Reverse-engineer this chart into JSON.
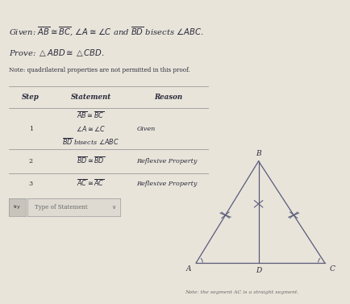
{
  "bg_color": "#e8e4da",
  "header_color": "#b8c4d0",
  "title_bg": "#dde4ea",
  "given_text": "Given: $\\overline{AB} \\cong \\overline{BC}$, $\\angle A \\cong \\angle C$ and $\\overline{BD}$ bisects $\\angle ABC$.",
  "prove_text": "Prove: $\\triangle ABD \\cong \\triangle CBD$.",
  "note_top": "Note: quadrilateral properties are not permitted in this proof.",
  "table_headers": [
    "Step",
    "Statement",
    "Reason"
  ],
  "row1_stmt": [
    "$\\overline{AB} \\cong \\overline{BC}$",
    "$\\angle A \\cong \\angle C$",
    "$\\overline{BD}$ bisects $\\angle ABC$"
  ],
  "row1_reason": "Given",
  "row2_stmt": "$\\overline{BD} \\cong \\overline{BD}$",
  "row2_reason": "Reflexive Property",
  "row3_stmt": "$\\overline{AC} \\cong \\overline{AC}$",
  "row3_reason": "Reflexive Property",
  "dropdown_label": "Type of Statement",
  "note_bottom": "Note: the segment AC is a straight segment.",
  "line_color": "#5a5a7a",
  "text_color": "#2a2a3a",
  "table_line_color": "#999999",
  "tri_A": [
    0.22,
    0.15
  ],
  "tri_B": [
    0.55,
    0.82
  ],
  "tri_C": [
    0.9,
    0.15
  ],
  "tri_D": [
    0.55,
    0.15
  ]
}
